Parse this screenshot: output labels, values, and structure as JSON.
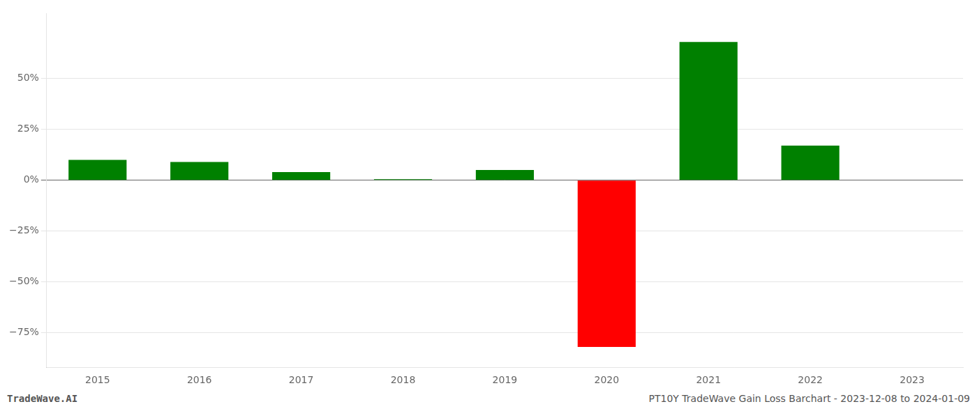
{
  "chart_data": {
    "type": "bar",
    "categories": [
      "2015",
      "2016",
      "2017",
      "2018",
      "2019",
      "2020",
      "2021",
      "2022",
      "2023"
    ],
    "values": [
      0.1,
      0.09,
      0.04,
      0.005,
      0.05,
      -0.82,
      0.68,
      0.17,
      0.0
    ],
    "colors": [
      "#008000",
      "#008000",
      "#008000",
      "#008000",
      "#008000",
      "#ff0000",
      "#008000",
      "#008000",
      "#008000"
    ],
    "ylim": [
      -0.92,
      0.82
    ],
    "yticks": [
      {
        "value": -0.75,
        "label": "−75%"
      },
      {
        "value": -0.5,
        "label": "−50%"
      },
      {
        "value": -0.25,
        "label": "−25%"
      },
      {
        "value": 0,
        "label": "0%"
      },
      {
        "value": 0.25,
        "label": "25%"
      },
      {
        "value": 0.5,
        "label": "50%"
      }
    ],
    "grid": true,
    "annotations": [
      "TradeWave.AI",
      "PT10Y TradeWave Gain Loss Barchart - 2023-12-08 to 2024-01-09"
    ]
  }
}
